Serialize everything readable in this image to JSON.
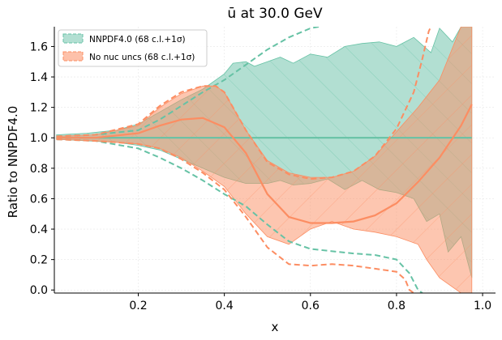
{
  "chart_data": {
    "type": "line",
    "title": "ū at 30.0 GeV",
    "xlabel": "x",
    "ylabel": "Ratio to NNPDF4.0",
    "xlim": [
      0.005,
      1.03
    ],
    "ylim": [
      -0.02,
      1.73
    ],
    "xticks": [
      "0.2",
      "0.4",
      "0.6",
      "0.8",
      "1.0"
    ],
    "xtick_values": [
      0.2,
      0.4,
      0.6,
      0.8,
      1.0
    ],
    "yticks": [
      "0.0",
      "0.2",
      "0.4",
      "0.6",
      "0.8",
      "1.0",
      "1.2",
      "1.4",
      "1.6"
    ],
    "ytick_values": [
      0.0,
      0.2,
      0.4,
      0.6,
      0.8,
      1.0,
      1.2,
      1.4,
      1.6
    ],
    "grid": true,
    "legend_position": "upper-left",
    "colors": {
      "nnpdf": "#66c2a5",
      "nnpdf_fill": "#b2dfd2",
      "nonuc": "#fc8d62",
      "nonuc_fill": "#fdc1aa",
      "overlap": "#d2ab8f"
    },
    "series": [
      {
        "name": "NNPDF4.0 (68 c.l.+1σ)",
        "color": "#66c2a5",
        "central": {
          "x": [
            0.01,
            0.2,
            0.4,
            0.6,
            0.8,
            0.975
          ],
          "y": [
            1.0,
            1.0,
            1.0,
            1.0,
            1.0,
            1.0
          ]
        },
        "band_upper": {
          "x": [
            0.01,
            0.08,
            0.15,
            0.2,
            0.25,
            0.3,
            0.35,
            0.4,
            0.42,
            0.45,
            0.47,
            0.5,
            0.53,
            0.56,
            0.6,
            0.64,
            0.68,
            0.72,
            0.76,
            0.8,
            0.84,
            0.88,
            0.9,
            0.93,
            0.95,
            0.975
          ],
          "y": [
            1.02,
            1.03,
            1.05,
            1.09,
            1.17,
            1.25,
            1.32,
            1.42,
            1.49,
            1.5,
            1.47,
            1.5,
            1.53,
            1.49,
            1.55,
            1.53,
            1.6,
            1.62,
            1.63,
            1.6,
            1.66,
            1.56,
            1.72,
            1.63,
            1.73,
            1.73
          ]
        },
        "band_lower": {
          "x": [
            0.01,
            0.08,
            0.15,
            0.2,
            0.25,
            0.3,
            0.35,
            0.4,
            0.45,
            0.5,
            0.53,
            0.56,
            0.6,
            0.64,
            0.68,
            0.72,
            0.76,
            0.8,
            0.84,
            0.87,
            0.9,
            0.92,
            0.95,
            0.975
          ],
          "y": [
            0.99,
            0.98,
            0.97,
            0.95,
            0.92,
            0.86,
            0.8,
            0.74,
            0.7,
            0.7,
            0.72,
            0.69,
            0.7,
            0.73,
            0.66,
            0.72,
            0.66,
            0.64,
            0.6,
            0.45,
            0.5,
            0.25,
            0.35,
            0.08
          ]
        },
        "upper_dashed": {
          "x": [
            0.01,
            0.1,
            0.2,
            0.25,
            0.3,
            0.35,
            0.4,
            0.45,
            0.5,
            0.55,
            0.6,
            0.62
          ],
          "y": [
            1.01,
            1.02,
            1.05,
            1.12,
            1.21,
            1.3,
            1.38,
            1.48,
            1.58,
            1.66,
            1.72,
            1.73
          ]
        },
        "lower_dashed": {
          "x": [
            0.01,
            0.1,
            0.2,
            0.25,
            0.3,
            0.35,
            0.4,
            0.45,
            0.5,
            0.55,
            0.6,
            0.7,
            0.75,
            0.8,
            0.83,
            0.85,
            0.86
          ],
          "y": [
            0.99,
            0.98,
            0.93,
            0.87,
            0.8,
            0.72,
            0.63,
            0.55,
            0.43,
            0.32,
            0.27,
            0.24,
            0.23,
            0.2,
            0.11,
            0.0,
            -0.02
          ]
        }
      },
      {
        "name": "No nuc uncs (68 c.l.+1σ)",
        "color": "#fc8d62",
        "central": {
          "x": [
            0.01,
            0.1,
            0.2,
            0.25,
            0.3,
            0.35,
            0.4,
            0.45,
            0.5,
            0.55,
            0.6,
            0.65,
            0.7,
            0.75,
            0.8,
            0.85,
            0.9,
            0.95,
            0.975
          ],
          "y": [
            1.0,
            1.0,
            1.03,
            1.08,
            1.12,
            1.13,
            1.07,
            0.9,
            0.63,
            0.48,
            0.44,
            0.44,
            0.45,
            0.49,
            0.57,
            0.71,
            0.87,
            1.08,
            1.22
          ]
        },
        "band_upper": {
          "x": [
            0.01,
            0.1,
            0.2,
            0.25,
            0.3,
            0.35,
            0.38,
            0.4,
            0.45,
            0.5,
            0.55,
            0.6,
            0.65,
            0.7,
            0.75,
            0.8,
            0.85,
            0.9,
            0.95,
            0.975
          ],
          "y": [
            1.01,
            1.02,
            1.08,
            1.2,
            1.29,
            1.34,
            1.34,
            1.3,
            1.05,
            0.85,
            0.77,
            0.74,
            0.74,
            0.78,
            0.88,
            1.04,
            1.2,
            1.38,
            1.73,
            1.73
          ]
        },
        "band_lower": {
          "x": [
            0.01,
            0.1,
            0.2,
            0.25,
            0.3,
            0.35,
            0.4,
            0.45,
            0.5,
            0.55,
            0.6,
            0.65,
            0.7,
            0.75,
            0.8,
            0.85,
            0.87,
            0.9,
            0.95,
            0.975
          ],
          "y": [
            0.99,
            0.98,
            0.96,
            0.93,
            0.87,
            0.78,
            0.68,
            0.5,
            0.35,
            0.3,
            0.4,
            0.45,
            0.4,
            0.38,
            0.35,
            0.3,
            0.2,
            0.08,
            -0.02,
            -0.02
          ]
        },
        "upper_dashed": {
          "x": [
            0.01,
            0.1,
            0.2,
            0.25,
            0.3,
            0.35,
            0.38,
            0.4,
            0.45,
            0.5,
            0.55,
            0.6,
            0.65,
            0.7,
            0.75,
            0.8,
            0.84,
            0.86,
            0.875,
            0.88
          ],
          "y": [
            1.01,
            1.02,
            1.09,
            1.21,
            1.3,
            1.34,
            1.34,
            1.3,
            1.05,
            0.84,
            0.76,
            0.73,
            0.74,
            0.78,
            0.88,
            1.06,
            1.3,
            1.52,
            1.7,
            1.73
          ]
        },
        "lower_dashed": {
          "x": [
            0.01,
            0.1,
            0.2,
            0.25,
            0.3,
            0.35,
            0.4,
            0.45,
            0.5,
            0.55,
            0.6,
            0.65,
            0.7,
            0.75,
            0.8,
            0.82,
            0.83,
            0.84
          ],
          "y": [
            0.99,
            0.98,
            0.96,
            0.93,
            0.86,
            0.77,
            0.66,
            0.48,
            0.28,
            0.17,
            0.16,
            0.17,
            0.16,
            0.14,
            0.12,
            0.07,
            0.0,
            -0.02
          ]
        }
      }
    ]
  }
}
